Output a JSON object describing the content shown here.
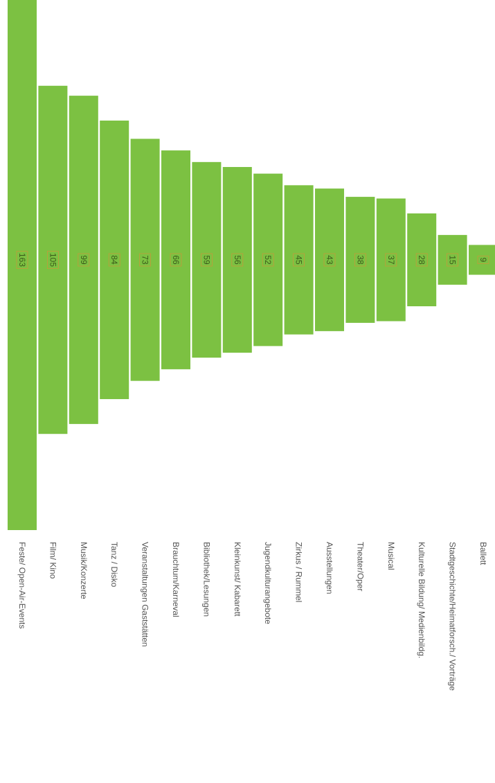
{
  "chart_data": {
    "type": "bar",
    "orientation": "vertical, page rotated 90°, bars centered (funnel)",
    "categories": [
      "Feste/ Open-Air-Events",
      "Film/ Kino",
      "Musik/Konzerte",
      "Tanz / Disko",
      "Veranstaltungen Gaststätten",
      "Brauchtum/Karneval",
      "Bibliothek/Lesungen",
      "Kleinkunst/ Kabarett",
      "Jugendkulturangebote",
      "Zirkus / Rummel",
      "Ausstellungen",
      "Theater/Oper",
      "Musical",
      "Kulturelle Bildung/ Medienbildg.",
      "Stadtgeschichte/Heimatforsch./ Vorträge",
      "Ballett"
    ],
    "values": [
      163,
      105,
      99,
      84,
      73,
      66,
      59,
      56,
      52,
      45,
      43,
      38,
      37,
      28,
      15,
      9
    ],
    "title": "",
    "xlabel": "",
    "ylabel": "",
    "ylim": [
      0,
      163
    ],
    "grid": false,
    "legend": "none",
    "colors": {
      "bar": "#7cc142",
      "bar_label": "#3a5a1a",
      "label_box": "#c49a3a",
      "category_text": "#555555"
    }
  }
}
